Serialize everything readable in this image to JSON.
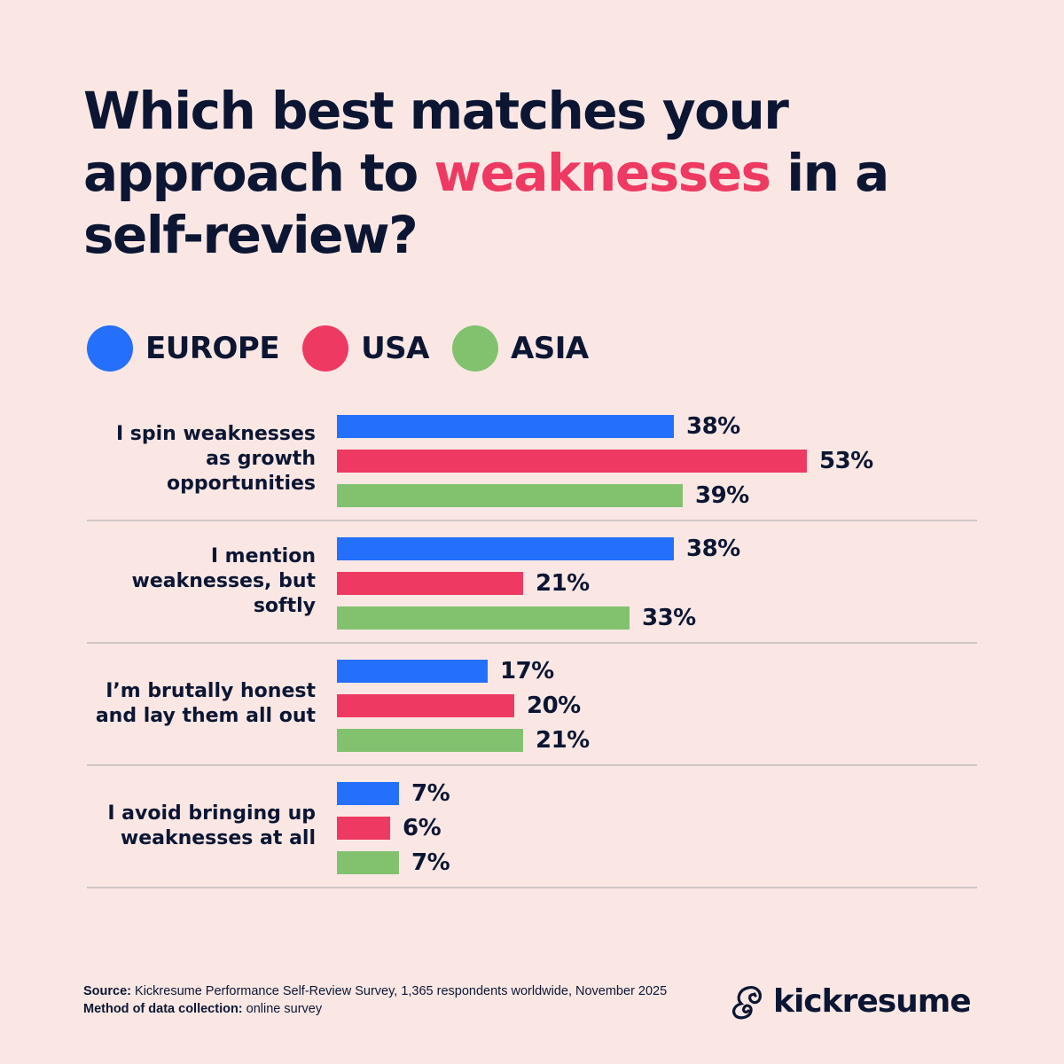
{
  "title": {
    "before": "Which best matches your approach to ",
    "highlight": "weaknesses",
    "after": " in a self-review?",
    "highlight_color": "#ee3a62"
  },
  "legend": [
    {
      "label": "EUROPE",
      "color": "#246ffb"
    },
    {
      "label": "USA",
      "color": "#ee3a62"
    },
    {
      "label": "ASIA",
      "color": "#82c26f"
    }
  ],
  "footer": {
    "source_label": "Source:",
    "source_text": " Kickresume Performance Self-Review Survey, 1,365 respondents worldwide, November 2025",
    "method_label": "Method of data collection:",
    "method_text": " online survey"
  },
  "logo": {
    "text": "kickresume",
    "icon": "chameleon-logo-icon"
  },
  "chart_data": {
    "type": "bar",
    "orientation": "horizontal",
    "title": "Which best matches your approach to weaknesses in a self-review?",
    "xlabel": "",
    "ylabel": "",
    "unit": "%",
    "grid": false,
    "legend_position": "top",
    "categories": [
      "I spin weaknesses as growth opportunities",
      "I mention weaknesses, but softly",
      "I’m brutally honest and lay them all out",
      "I avoid bringing up weaknesses at all"
    ],
    "series": [
      {
        "name": "EUROPE",
        "color": "#246ffb",
        "values": [
          38,
          38,
          17,
          7
        ]
      },
      {
        "name": "USA",
        "color": "#ee3a62",
        "values": [
          53,
          21,
          20,
          6
        ]
      },
      {
        "name": "ASIA",
        "color": "#82c26f",
        "values": [
          39,
          33,
          21,
          7
        ]
      }
    ],
    "value_labels": [
      [
        "38%",
        "53%",
        "39%"
      ],
      [
        "38%",
        "21%",
        "33%"
      ],
      [
        "17%",
        "20%",
        "21%"
      ],
      [
        "7%",
        "6%",
        "7%"
      ]
    ],
    "group_label_lines": [
      [
        "I spin weaknesses",
        "as growth",
        "opportunities"
      ],
      [
        "I mention",
        "weaknesses, but",
        "softly"
      ],
      [
        "I’m brutally honest",
        "and lay them all out"
      ],
      [
        "I avoid bringing up",
        "weaknesses at all"
      ]
    ]
  }
}
